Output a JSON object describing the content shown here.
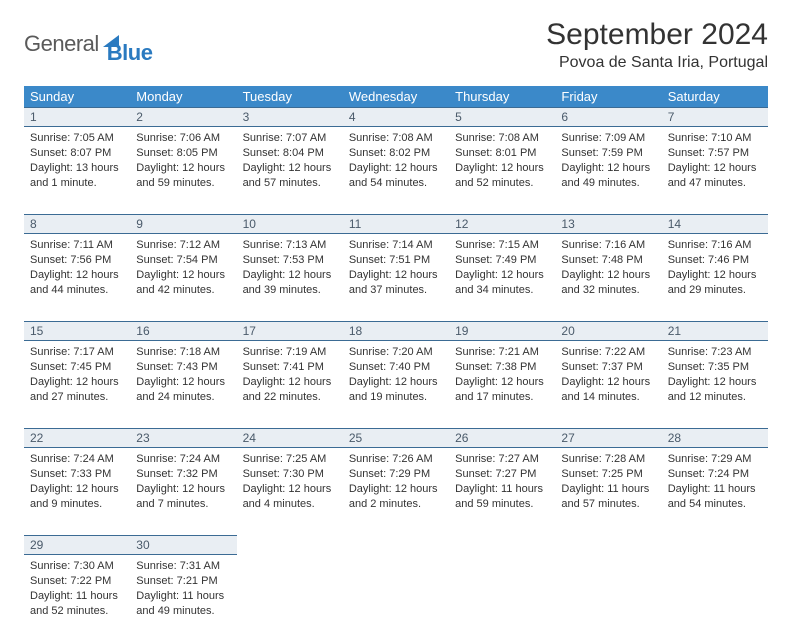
{
  "logo": {
    "word1": "General",
    "word2": "Blue"
  },
  "title": "September 2024",
  "location": "Povoa de Santa Iria, Portugal",
  "day_headers": [
    "Sunday",
    "Monday",
    "Tuesday",
    "Wednesday",
    "Thursday",
    "Friday",
    "Saturday"
  ],
  "colors": {
    "header_bg": "#3b89c9",
    "header_text": "#ffffff",
    "daynum_bg": "#e9eef3",
    "daynum_text": "#4a5a6a",
    "rule": "#3b6b94",
    "logo_gray": "#5a5a5a",
    "logo_blue": "#2a7ac0"
  },
  "weeks": [
    [
      {
        "n": "1",
        "sr": "Sunrise: 7:05 AM",
        "ss": "Sunset: 8:07 PM",
        "dl": "Daylight: 13 hours and 1 minute."
      },
      {
        "n": "2",
        "sr": "Sunrise: 7:06 AM",
        "ss": "Sunset: 8:05 PM",
        "dl": "Daylight: 12 hours and 59 minutes."
      },
      {
        "n": "3",
        "sr": "Sunrise: 7:07 AM",
        "ss": "Sunset: 8:04 PM",
        "dl": "Daylight: 12 hours and 57 minutes."
      },
      {
        "n": "4",
        "sr": "Sunrise: 7:08 AM",
        "ss": "Sunset: 8:02 PM",
        "dl": "Daylight: 12 hours and 54 minutes."
      },
      {
        "n": "5",
        "sr": "Sunrise: 7:08 AM",
        "ss": "Sunset: 8:01 PM",
        "dl": "Daylight: 12 hours and 52 minutes."
      },
      {
        "n": "6",
        "sr": "Sunrise: 7:09 AM",
        "ss": "Sunset: 7:59 PM",
        "dl": "Daylight: 12 hours and 49 minutes."
      },
      {
        "n": "7",
        "sr": "Sunrise: 7:10 AM",
        "ss": "Sunset: 7:57 PM",
        "dl": "Daylight: 12 hours and 47 minutes."
      }
    ],
    [
      {
        "n": "8",
        "sr": "Sunrise: 7:11 AM",
        "ss": "Sunset: 7:56 PM",
        "dl": "Daylight: 12 hours and 44 minutes."
      },
      {
        "n": "9",
        "sr": "Sunrise: 7:12 AM",
        "ss": "Sunset: 7:54 PM",
        "dl": "Daylight: 12 hours and 42 minutes."
      },
      {
        "n": "10",
        "sr": "Sunrise: 7:13 AM",
        "ss": "Sunset: 7:53 PM",
        "dl": "Daylight: 12 hours and 39 minutes."
      },
      {
        "n": "11",
        "sr": "Sunrise: 7:14 AM",
        "ss": "Sunset: 7:51 PM",
        "dl": "Daylight: 12 hours and 37 minutes."
      },
      {
        "n": "12",
        "sr": "Sunrise: 7:15 AM",
        "ss": "Sunset: 7:49 PM",
        "dl": "Daylight: 12 hours and 34 minutes."
      },
      {
        "n": "13",
        "sr": "Sunrise: 7:16 AM",
        "ss": "Sunset: 7:48 PM",
        "dl": "Daylight: 12 hours and 32 minutes."
      },
      {
        "n": "14",
        "sr": "Sunrise: 7:16 AM",
        "ss": "Sunset: 7:46 PM",
        "dl": "Daylight: 12 hours and 29 minutes."
      }
    ],
    [
      {
        "n": "15",
        "sr": "Sunrise: 7:17 AM",
        "ss": "Sunset: 7:45 PM",
        "dl": "Daylight: 12 hours and 27 minutes."
      },
      {
        "n": "16",
        "sr": "Sunrise: 7:18 AM",
        "ss": "Sunset: 7:43 PM",
        "dl": "Daylight: 12 hours and 24 minutes."
      },
      {
        "n": "17",
        "sr": "Sunrise: 7:19 AM",
        "ss": "Sunset: 7:41 PM",
        "dl": "Daylight: 12 hours and 22 minutes."
      },
      {
        "n": "18",
        "sr": "Sunrise: 7:20 AM",
        "ss": "Sunset: 7:40 PM",
        "dl": "Daylight: 12 hours and 19 minutes."
      },
      {
        "n": "19",
        "sr": "Sunrise: 7:21 AM",
        "ss": "Sunset: 7:38 PM",
        "dl": "Daylight: 12 hours and 17 minutes."
      },
      {
        "n": "20",
        "sr": "Sunrise: 7:22 AM",
        "ss": "Sunset: 7:37 PM",
        "dl": "Daylight: 12 hours and 14 minutes."
      },
      {
        "n": "21",
        "sr": "Sunrise: 7:23 AM",
        "ss": "Sunset: 7:35 PM",
        "dl": "Daylight: 12 hours and 12 minutes."
      }
    ],
    [
      {
        "n": "22",
        "sr": "Sunrise: 7:24 AM",
        "ss": "Sunset: 7:33 PM",
        "dl": "Daylight: 12 hours and 9 minutes."
      },
      {
        "n": "23",
        "sr": "Sunrise: 7:24 AM",
        "ss": "Sunset: 7:32 PM",
        "dl": "Daylight: 12 hours and 7 minutes."
      },
      {
        "n": "24",
        "sr": "Sunrise: 7:25 AM",
        "ss": "Sunset: 7:30 PM",
        "dl": "Daylight: 12 hours and 4 minutes."
      },
      {
        "n": "25",
        "sr": "Sunrise: 7:26 AM",
        "ss": "Sunset: 7:29 PM",
        "dl": "Daylight: 12 hours and 2 minutes."
      },
      {
        "n": "26",
        "sr": "Sunrise: 7:27 AM",
        "ss": "Sunset: 7:27 PM",
        "dl": "Daylight: 11 hours and 59 minutes."
      },
      {
        "n": "27",
        "sr": "Sunrise: 7:28 AM",
        "ss": "Sunset: 7:25 PM",
        "dl": "Daylight: 11 hours and 57 minutes."
      },
      {
        "n": "28",
        "sr": "Sunrise: 7:29 AM",
        "ss": "Sunset: 7:24 PM",
        "dl": "Daylight: 11 hours and 54 minutes."
      }
    ],
    [
      {
        "n": "29",
        "sr": "Sunrise: 7:30 AM",
        "ss": "Sunset: 7:22 PM",
        "dl": "Daylight: 11 hours and 52 minutes."
      },
      {
        "n": "30",
        "sr": "Sunrise: 7:31 AM",
        "ss": "Sunset: 7:21 PM",
        "dl": "Daylight: 11 hours and 49 minutes."
      },
      null,
      null,
      null,
      null,
      null
    ]
  ]
}
